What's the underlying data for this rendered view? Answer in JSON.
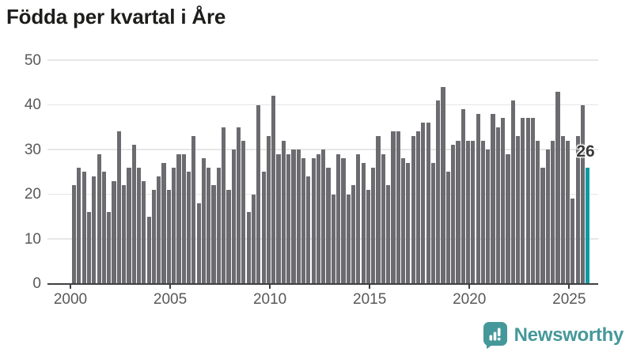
{
  "title": "Födda per kvartal i Åre",
  "chart_data": {
    "type": "bar",
    "title": "Födda per kvartal i Åre",
    "x_start": "2000-Q1",
    "x_end": "2025-Q4",
    "quarters_per_year": 4,
    "start_year": 2000,
    "values": [
      22,
      26,
      25,
      16,
      24,
      29,
      25,
      16,
      23,
      34,
      22,
      26,
      31,
      26,
      23,
      15,
      21,
      24,
      27,
      21,
      26,
      29,
      29,
      25,
      33,
      18,
      28,
      26,
      22,
      26,
      35,
      21,
      30,
      35,
      32,
      16,
      20,
      40,
      25,
      33,
      42,
      29,
      32,
      29,
      30,
      30,
      28,
      24,
      28,
      29,
      30,
      26,
      20,
      29,
      28,
      20,
      22,
      29,
      27,
      21,
      26,
      33,
      29,
      22,
      34,
      34,
      28,
      27,
      33,
      34,
      36,
      36,
      27,
      41,
      44,
      25,
      31,
      32,
      39,
      32,
      32,
      38,
      32,
      30,
      38,
      35,
      37,
      29,
      41,
      33,
      37,
      37,
      37,
      32,
      26,
      30,
      32,
      43,
      33,
      32,
      19,
      33,
      40,
      26
    ],
    "ylim": [
      0,
      50
    ],
    "y_ticks": [
      0,
      10,
      20,
      30,
      40,
      50
    ],
    "x_tick_years": [
      2000,
      2005,
      2010,
      2015,
      2020,
      2025
    ],
    "grid": "horizontal",
    "legend": "none",
    "bar_color": "#6b6b70",
    "highlight_color": "#0d9aa2",
    "highlight_index": 103,
    "highlight_label": "26"
  },
  "colors": {
    "title": "#1d1d1b",
    "axis_labels": "#58585a",
    "gridline": "#e6e6e6",
    "axis_line": "#3f3f41",
    "annotation_text": "#3a3a3a",
    "logo_teal": "#45989a"
  },
  "logo": {
    "text": "Newsworthy",
    "icon": "speech-bubble-bar-chart-icon"
  }
}
